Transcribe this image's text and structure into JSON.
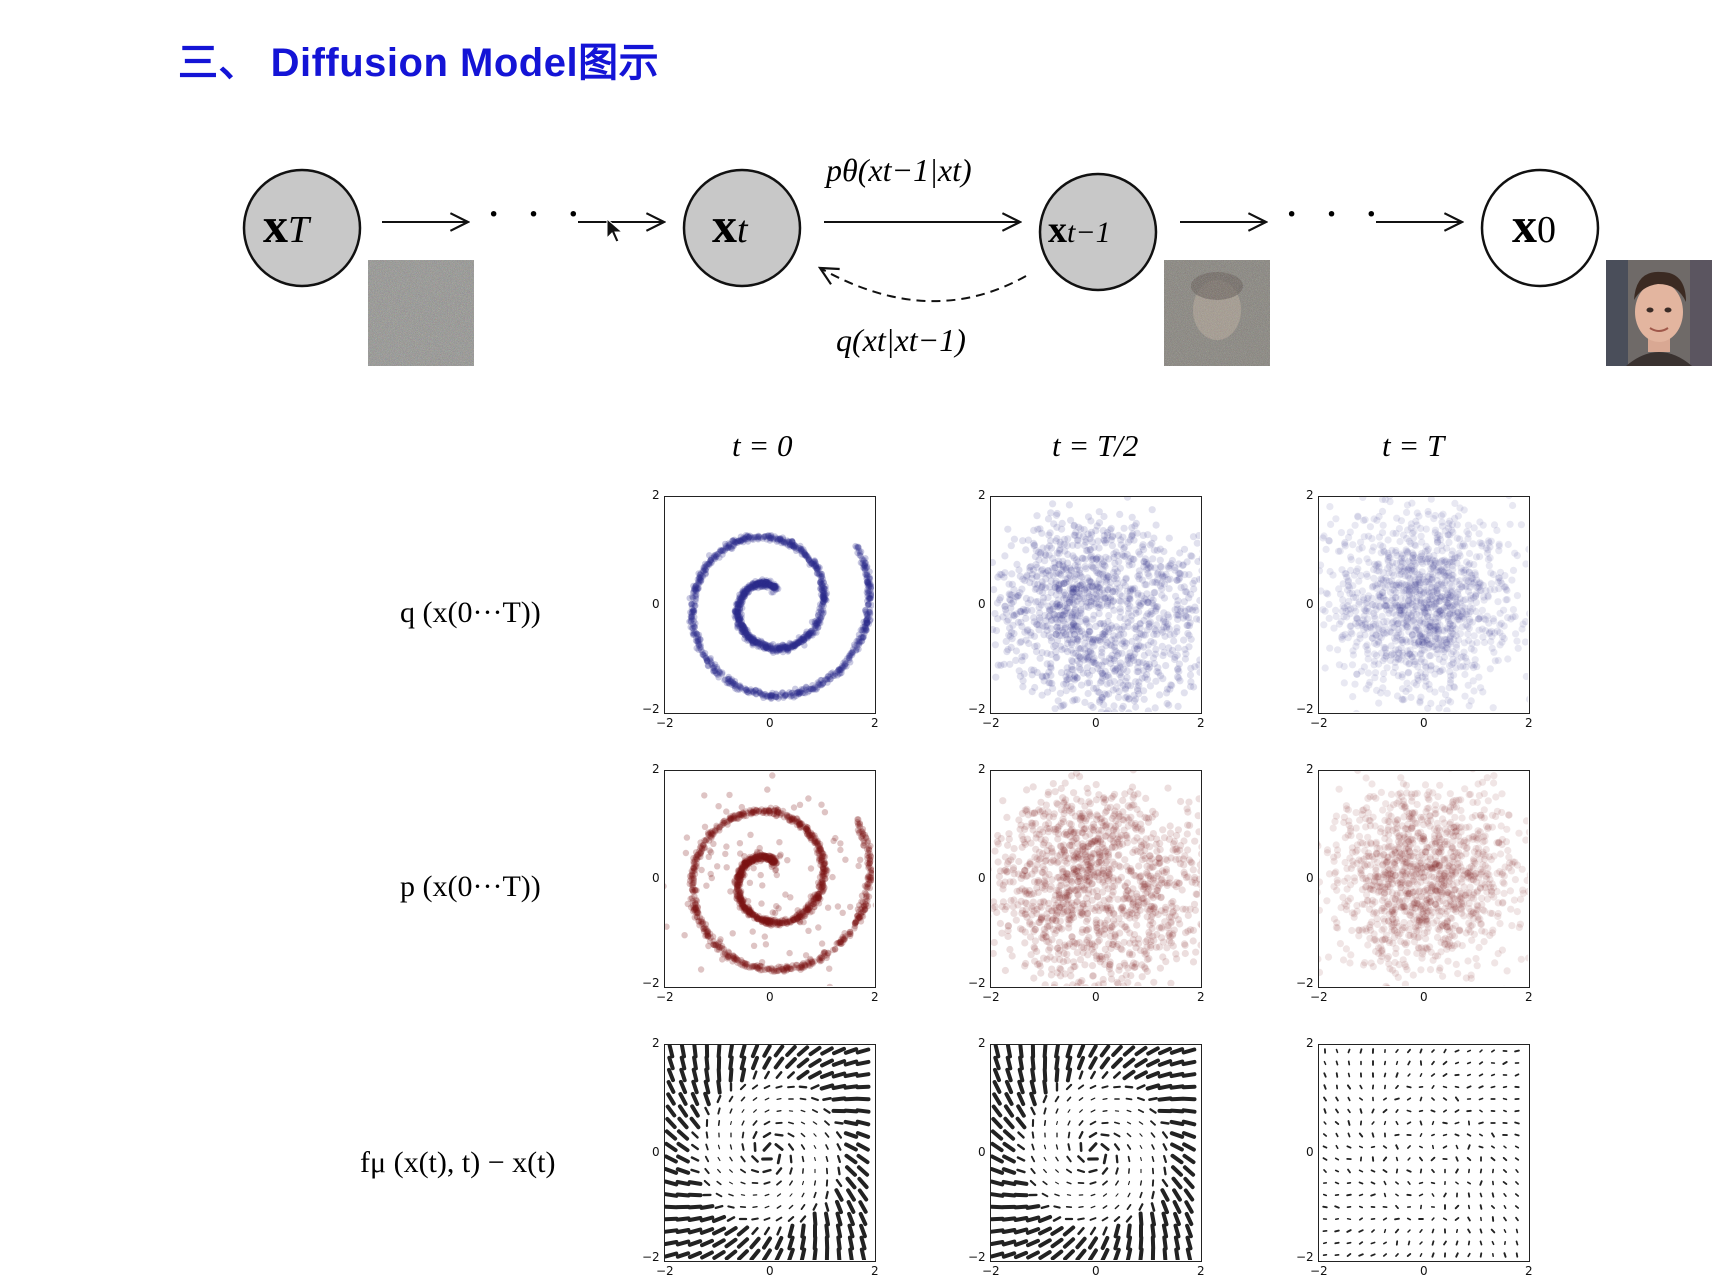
{
  "title": "三、 Diffusion Model图示",
  "chain": {
    "nodes": [
      {
        "label_main": "x",
        "label_sub": "T"
      },
      {
        "label_main": "x",
        "label_sub": "t"
      },
      {
        "label_main": "x",
        "label_sub": "t−1"
      },
      {
        "label_main": "x",
        "label_sub": "0"
      }
    ],
    "ellipsis": "· · ·",
    "reverse_label": "pθ(xt−1|xt)",
    "forward_label": "q(xt|xt−1)"
  },
  "grid": {
    "col_heads": [
      "t = 0",
      "t = T/2",
      "t = T"
    ],
    "row_labels": [
      "q (x(0···T))",
      "p (x(0···T))",
      "fμ (x(t), t) − x(t)"
    ],
    "ticks": [
      "−2",
      "0",
      "2"
    ]
  },
  "colors": {
    "title": "#1414d6",
    "node_fill": "#c8c8c8",
    "q_points": "#2a2a8a",
    "p_points": "#7a1515"
  }
}
